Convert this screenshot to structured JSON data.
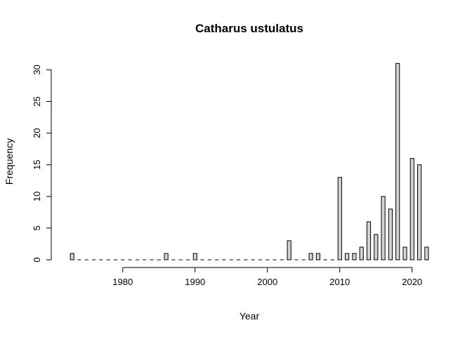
{
  "chart_data": {
    "type": "bar",
    "title": "Catharus ustulatus",
    "xlabel": "Year",
    "ylabel": "Frequency",
    "x_range": [
      1973,
      2022
    ],
    "ylim": [
      0,
      31
    ],
    "x_ticks": [
      1980,
      1990,
      2000,
      2010,
      2020
    ],
    "y_ticks": [
      0,
      5,
      10,
      15,
      20,
      25,
      30
    ],
    "grid": false,
    "legend": "none",
    "bar_color": "#d3d3d3",
    "years": [
      1973,
      1974,
      1975,
      1976,
      1977,
      1978,
      1979,
      1980,
      1981,
      1982,
      1983,
      1984,
      1985,
      1986,
      1987,
      1988,
      1989,
      1990,
      1991,
      1992,
      1993,
      1994,
      1995,
      1996,
      1997,
      1998,
      1999,
      2000,
      2001,
      2002,
      2003,
      2004,
      2005,
      2006,
      2007,
      2008,
      2009,
      2010,
      2011,
      2012,
      2013,
      2014,
      2015,
      2016,
      2017,
      2018,
      2019,
      2020,
      2021,
      2022
    ],
    "values": [
      1,
      0,
      0,
      0,
      0,
      0,
      0,
      0,
      0,
      0,
      0,
      0,
      0,
      1,
      0,
      0,
      0,
      1,
      0,
      0,
      0,
      0,
      0,
      0,
      0,
      0,
      0,
      0,
      0,
      0,
      3,
      0,
      0,
      1,
      1,
      0,
      0,
      13,
      1,
      1,
      2,
      6,
      4,
      10,
      8,
      31,
      2,
      16,
      15,
      2
    ]
  }
}
